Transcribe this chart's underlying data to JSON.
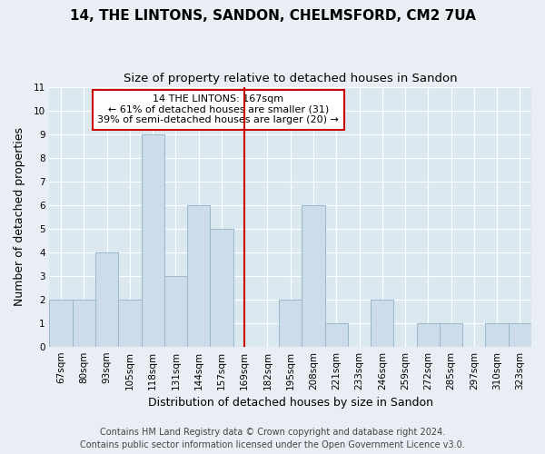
{
  "title": "14, THE LINTONS, SANDON, CHELMSFORD, CM2 7UA",
  "subtitle": "Size of property relative to detached houses in Sandon",
  "xlabel": "Distribution of detached houses by size in Sandon",
  "ylabel": "Number of detached properties",
  "bar_color": "#ccdce8",
  "bar_edge_color": "#9ab8cc",
  "categories": [
    "67sqm",
    "80sqm",
    "93sqm",
    "105sqm",
    "118sqm",
    "131sqm",
    "144sqm",
    "157sqm",
    "169sqm",
    "182sqm",
    "195sqm",
    "208sqm",
    "221sqm",
    "233sqm",
    "246sqm",
    "259sqm",
    "272sqm",
    "285sqm",
    "297sqm",
    "310sqm",
    "323sqm"
  ],
  "values": [
    2,
    2,
    4,
    2,
    9,
    3,
    6,
    5,
    0,
    0,
    2,
    6,
    1,
    0,
    2,
    0,
    1,
    1,
    0,
    1,
    1
  ],
  "ylim": [
    0,
    11
  ],
  "yticks": [
    0,
    1,
    2,
    3,
    4,
    5,
    6,
    7,
    8,
    9,
    10,
    11
  ],
  "property_line_index": 8,
  "property_line_color": "#cc0000",
  "annotation_title": "14 THE LINTONS: 167sqm",
  "annotation_line1": "← 61% of detached houses are smaller (31)",
  "annotation_line2": "39% of semi-detached houses are larger (20) →",
  "annotation_box_color": "#ffffff",
  "annotation_box_edge": "#cc0000",
  "footer1": "Contains HM Land Registry data © Crown copyright and database right 2024.",
  "footer2": "Contains public sector information licensed under the Open Government Licence v3.0.",
  "fig_background_color": "#e8eef4",
  "plot_background_color": "#dce8f0",
  "grid_color": "#ffffff",
  "title_fontsize": 11,
  "subtitle_fontsize": 9.5,
  "axis_label_fontsize": 9,
  "tick_fontsize": 7.5,
  "footer_fontsize": 7,
  "annotation_fontsize": 8
}
